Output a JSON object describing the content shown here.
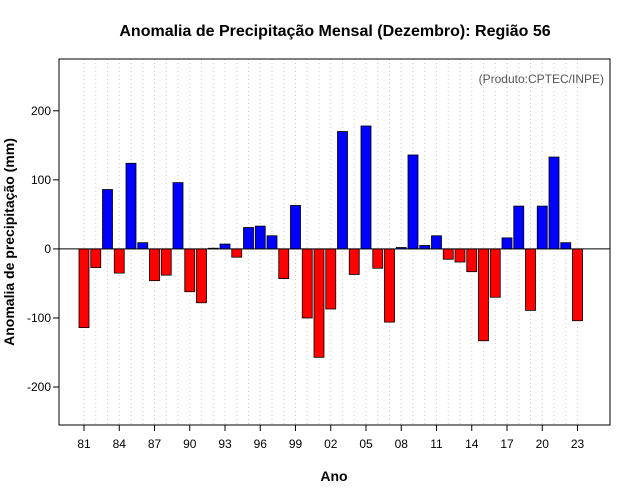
{
  "chart_data": {
    "type": "bar",
    "title": "Anomalia de Precipitação Mensal (Dezembro): Região 56",
    "xlabel": "Ano",
    "ylabel": "Anomalia de precipitação (mm)",
    "credit": "(Produto:CPTEC/INPE)",
    "ylim": [
      -255,
      275
    ],
    "yticks": [
      -200,
      -100,
      0,
      100,
      200
    ],
    "xtick_labels": [
      "81",
      "84",
      "87",
      "90",
      "93",
      "96",
      "99",
      "02",
      "05",
      "08",
      "11",
      "14",
      "17",
      "20",
      "23"
    ],
    "xtick_every": 3,
    "grid": true,
    "colors": {
      "positive": "#0000ff",
      "negative": "#ff0000",
      "zero_line": "#000000",
      "grid": "#cccccc"
    },
    "years": [
      1981,
      1982,
      1983,
      1984,
      1985,
      1986,
      1987,
      1988,
      1989,
      1990,
      1991,
      1992,
      1993,
      1994,
      1995,
      1996,
      1997,
      1998,
      1999,
      2000,
      2001,
      2002,
      2003,
      2004,
      2005,
      2006,
      2007,
      2008,
      2009,
      2010,
      2011,
      2012,
      2013,
      2014,
      2015,
      2016,
      2017,
      2018,
      2019,
      2020,
      2021,
      2022,
      2023
    ],
    "values": [
      -114,
      -27,
      86,
      -35,
      124,
      9,
      -46,
      -38,
      96,
      -62,
      -78,
      1,
      7,
      -12,
      31,
      33,
      19,
      -43,
      63,
      -100,
      -157,
      -87,
      170,
      -37,
      178,
      -28,
      -106,
      2,
      136,
      5,
      19,
      -15,
      -19,
      -33,
      -133,
      -70,
      16,
      62,
      -89,
      62,
      133,
      9,
      -104
    ]
  }
}
